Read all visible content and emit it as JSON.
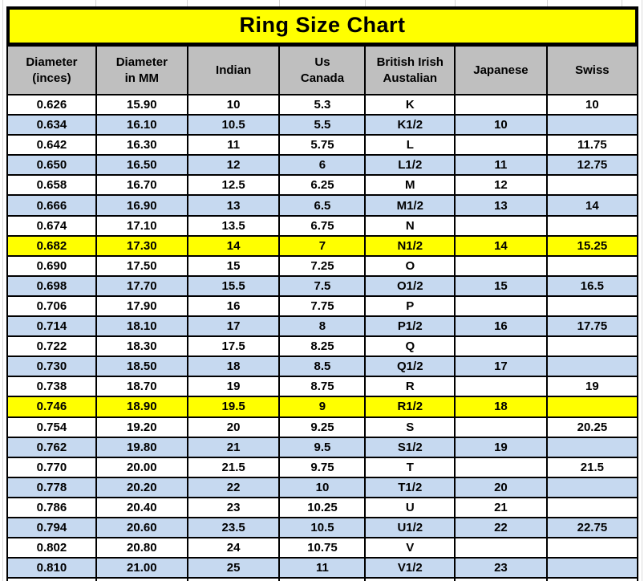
{
  "colors": {
    "title_background": "#FFFF00",
    "header_background": "#BFBFBF",
    "row_alternate_blue": "#C6D9F0",
    "row_highlight_yellow": "#FFFF00",
    "row_white": "#FFFFFF",
    "border": "#000000",
    "text": "#000000"
  },
  "chart_data": {
    "type": "table",
    "title": "Ring Size Chart",
    "columns": [
      [
        "Diameter",
        "(inces)"
      ],
      [
        "Diameter",
        "in MM"
      ],
      [
        "Indian"
      ],
      [
        "Us",
        "Canada"
      ],
      [
        "British Irish",
        "Austalian"
      ],
      [
        "Japanese"
      ],
      [
        "Swiss"
      ]
    ],
    "rows": [
      {
        "cells": [
          "0.626",
          "15.90",
          "10",
          "5.3",
          "K",
          "",
          "10"
        ],
        "bg": "white"
      },
      {
        "cells": [
          "0.634",
          "16.10",
          "10.5",
          "5.5",
          "K1/2",
          "10",
          ""
        ],
        "bg": "blue"
      },
      {
        "cells": [
          "0.642",
          "16.30",
          "11",
          "5.75",
          "L",
          "",
          "11.75"
        ],
        "bg": "white"
      },
      {
        "cells": [
          "0.650",
          "16.50",
          "12",
          "6",
          "L1/2",
          "11",
          "12.75"
        ],
        "bg": "blue"
      },
      {
        "cells": [
          "0.658",
          "16.70",
          "12.5",
          "6.25",
          "M",
          "12",
          ""
        ],
        "bg": "white"
      },
      {
        "cells": [
          "0.666",
          "16.90",
          "13",
          "6.5",
          "M1/2",
          "13",
          "14"
        ],
        "bg": "blue"
      },
      {
        "cells": [
          "0.674",
          "17.10",
          "13.5",
          "6.75",
          "N",
          "",
          ""
        ],
        "bg": "white"
      },
      {
        "cells": [
          "0.682",
          "17.30",
          "14",
          "7",
          "N1/2",
          "14",
          "15.25"
        ],
        "bg": "yellow"
      },
      {
        "cells": [
          "0.690",
          "17.50",
          "15",
          "7.25",
          "O",
          "",
          ""
        ],
        "bg": "white"
      },
      {
        "cells": [
          "0.698",
          "17.70",
          "15.5",
          "7.5",
          "O1/2",
          "15",
          "16.5"
        ],
        "bg": "blue"
      },
      {
        "cells": [
          "0.706",
          "17.90",
          "16",
          "7.75",
          "P",
          "",
          ""
        ],
        "bg": "white"
      },
      {
        "cells": [
          "0.714",
          "18.10",
          "17",
          "8",
          "P1/2",
          "16",
          "17.75"
        ],
        "bg": "blue"
      },
      {
        "cells": [
          "0.722",
          "18.30",
          "17.5",
          "8.25",
          "Q",
          "",
          ""
        ],
        "bg": "white"
      },
      {
        "cells": [
          "0.730",
          "18.50",
          "18",
          "8.5",
          "Q1/2",
          "17",
          ""
        ],
        "bg": "blue"
      },
      {
        "cells": [
          "0.738",
          "18.70",
          "19",
          "8.75",
          "R",
          "",
          "19"
        ],
        "bg": "white"
      },
      {
        "cells": [
          "0.746",
          "18.90",
          "19.5",
          "9",
          "R1/2",
          "18",
          ""
        ],
        "bg": "yellow"
      },
      {
        "cells": [
          "0.754",
          "19.20",
          "20",
          "9.25",
          "S",
          "",
          "20.25"
        ],
        "bg": "white"
      },
      {
        "cells": [
          "0.762",
          "19.80",
          "21",
          "9.5",
          "S1/2",
          "19",
          ""
        ],
        "bg": "blue"
      },
      {
        "cells": [
          "0.770",
          "20.00",
          "21.5",
          "9.75",
          "T",
          "",
          "21.5"
        ],
        "bg": "white"
      },
      {
        "cells": [
          "0.778",
          "20.20",
          "22",
          "10",
          "T1/2",
          "20",
          ""
        ],
        "bg": "blue"
      },
      {
        "cells": [
          "0.786",
          "20.40",
          "23",
          "10.25",
          "U",
          "21",
          ""
        ],
        "bg": "white"
      },
      {
        "cells": [
          "0.794",
          "20.60",
          "23.5",
          "10.5",
          "U1/2",
          "22",
          "22.75"
        ],
        "bg": "blue"
      },
      {
        "cells": [
          "0.802",
          "20.80",
          "24",
          "10.75",
          "V",
          "",
          ""
        ],
        "bg": "white"
      },
      {
        "cells": [
          "0.810",
          "21.00",
          "25",
          "11",
          "V1/2",
          "23",
          ""
        ],
        "bg": "blue"
      }
    ]
  }
}
